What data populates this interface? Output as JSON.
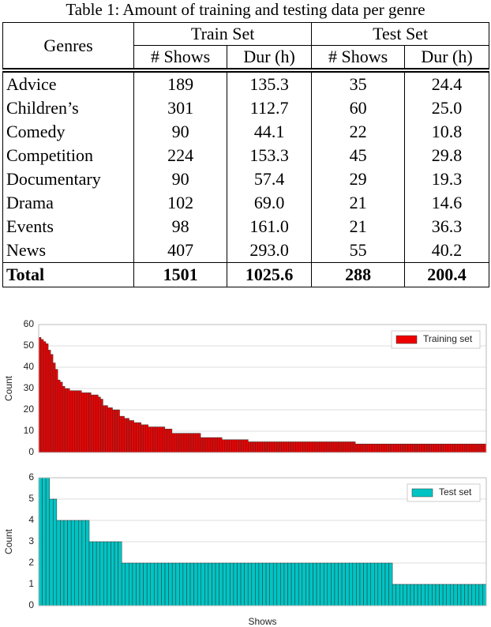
{
  "table": {
    "caption": "Table 1: Amount of training and testing data per genre",
    "genres": "Genres",
    "train": "Train Set",
    "test": "Test Set",
    "columns": [
      "# Shows",
      "Dur (h)",
      "# Shows",
      "Dur (h)"
    ],
    "rows": [
      [
        "Advice",
        "189",
        "135.3",
        "35",
        "24.4"
      ],
      [
        "Children’s",
        "301",
        "112.7",
        "60",
        "25.0"
      ],
      [
        "Comedy",
        "90",
        "44.1",
        "22",
        "10.8"
      ],
      [
        "Competition",
        "224",
        "153.3",
        "45",
        "29.8"
      ],
      [
        "Documentary",
        "90",
        "57.4",
        "29",
        "19.3"
      ],
      [
        "Drama",
        "102",
        "69.0",
        "21",
        "14.6"
      ],
      [
        "Events",
        "98",
        "161.0",
        "21",
        "36.3"
      ],
      [
        "News",
        "407",
        "293.0",
        "55",
        "40.2"
      ]
    ],
    "total": [
      "Total",
      "1501",
      "1025.6",
      "288",
      "200.4"
    ]
  },
  "chart_data": [
    {
      "type": "bar",
      "ylabel": "Count",
      "ylim": [
        0,
        60
      ],
      "yticks": [
        0,
        10,
        20,
        30,
        40,
        50,
        60
      ],
      "grid": true,
      "legend": "upper right",
      "series": [
        {
          "name": "Training set",
          "color": "#ee0000",
          "values": [
            54,
            53,
            52,
            51,
            48,
            46,
            42,
            39,
            34,
            33,
            31,
            30,
            30,
            29,
            29,
            29,
            29,
            29,
            28,
            28,
            28,
            28,
            27,
            27,
            27,
            26,
            25,
            22,
            22,
            21,
            21,
            20,
            20,
            20,
            17,
            17,
            16,
            16,
            15,
            15,
            14,
            14,
            14,
            13,
            13,
            13,
            12,
            12,
            12,
            12,
            12,
            12,
            12,
            11,
            11,
            11,
            9,
            9,
            9,
            9,
            9,
            9,
            9,
            9,
            9,
            9,
            9,
            9,
            7,
            7,
            7,
            7,
            7,
            7,
            7,
            7,
            7,
            6,
            6,
            6,
            6,
            6,
            6,
            6,
            6,
            6,
            6,
            6,
            5,
            5,
            5,
            5,
            5,
            5,
            5,
            5,
            5,
            5,
            5,
            5,
            5,
            5,
            5,
            5,
            5,
            5,
            5,
            5,
            5,
            5,
            5,
            5,
            5,
            5,
            5,
            5,
            5,
            5,
            5,
            5,
            5,
            5,
            5,
            5,
            5,
            5,
            5,
            5,
            5,
            5,
            5,
            5,
            5,
            4,
            4,
            4,
            4,
            4,
            4,
            4,
            4,
            4,
            4,
            4,
            4,
            4,
            4,
            4,
            4,
            4,
            4,
            4,
            4,
            4,
            4,
            4,
            4,
            4,
            4,
            4,
            4,
            4,
            4,
            4,
            4,
            4,
            4,
            4,
            4,
            4,
            4,
            4,
            4,
            4,
            4,
            4,
            4,
            4,
            4,
            4,
            4,
            4,
            4,
            4,
            4,
            4,
            4,
            4
          ]
        }
      ]
    },
    {
      "type": "bar",
      "xlabel": "Shows",
      "ylabel": "Count",
      "ylim": [
        0,
        6
      ],
      "yticks": [
        0,
        1,
        2,
        3,
        4,
        5,
        6
      ],
      "grid": true,
      "legend": "upper right",
      "series": [
        {
          "name": "Test set",
          "color": "#00c4c4",
          "values": [
            6,
            6,
            6,
            5,
            5,
            4,
            4,
            4,
            4,
            4,
            4,
            4,
            4,
            4,
            3,
            3,
            3,
            3,
            3,
            3,
            3,
            3,
            3,
            2,
            2,
            2,
            2,
            2,
            2,
            2,
            2,
            2,
            2,
            2,
            2,
            2,
            2,
            2,
            2,
            2,
            2,
            2,
            2,
            2,
            2,
            2,
            2,
            2,
            2,
            2,
            2,
            2,
            2,
            2,
            2,
            2,
            2,
            2,
            2,
            2,
            2,
            2,
            2,
            2,
            2,
            2,
            2,
            2,
            2,
            2,
            2,
            2,
            2,
            2,
            2,
            2,
            2,
            2,
            2,
            2,
            2,
            2,
            2,
            2,
            2,
            2,
            2,
            2,
            2,
            2,
            2,
            2,
            2,
            2,
            2,
            2,
            2,
            2,
            1,
            1,
            1,
            1,
            1,
            1,
            1,
            1,
            1,
            1,
            1,
            1,
            1,
            1,
            1,
            1,
            1,
            1,
            1,
            1,
            1,
            1,
            1,
            1,
            1,
            1
          ]
        }
      ]
    }
  ]
}
